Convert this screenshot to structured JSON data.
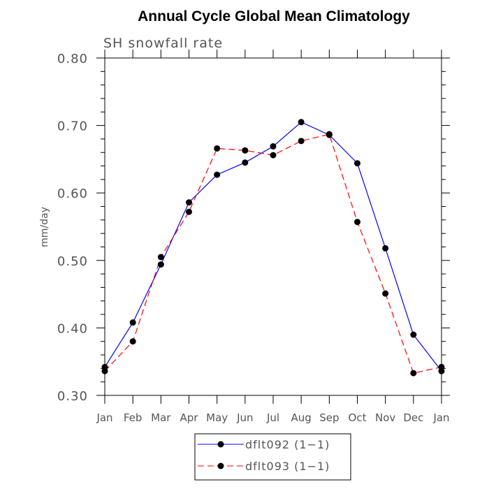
{
  "chart_data": {
    "type": "line",
    "title": "Annual Cycle Global Mean Climatology",
    "subtitle": "SH snowfall rate",
    "ylabel": "mm/day",
    "xlabel": "",
    "categories": [
      "Jan",
      "Feb",
      "Mar",
      "Apr",
      "May",
      "Jun",
      "Jul",
      "Aug",
      "Sep",
      "Oct",
      "Nov",
      "Dec",
      "Jan"
    ],
    "ylim": [
      0.3,
      0.8
    ],
    "yticks": [
      "0.30",
      "0.40",
      "0.50",
      "0.60",
      "0.70",
      "0.80"
    ],
    "series": [
      {
        "name": "dflt092 (1−1)",
        "color": "#0000ff",
        "style": "solid",
        "values": [
          0.342,
          0.408,
          0.494,
          0.586,
          0.627,
          0.645,
          0.669,
          0.705,
          0.686,
          0.644,
          0.518,
          0.39,
          0.336
        ]
      },
      {
        "name": "dflt093 (1−1)",
        "color": "#ff0000",
        "style": "dashed",
        "values": [
          0.336,
          0.38,
          0.505,
          0.572,
          0.666,
          0.663,
          0.656,
          0.677,
          0.687,
          0.557,
          0.451,
          0.333,
          0.342
        ]
      }
    ],
    "grid": false,
    "legend_position": "bottom-center",
    "marker_color": "#000000"
  }
}
